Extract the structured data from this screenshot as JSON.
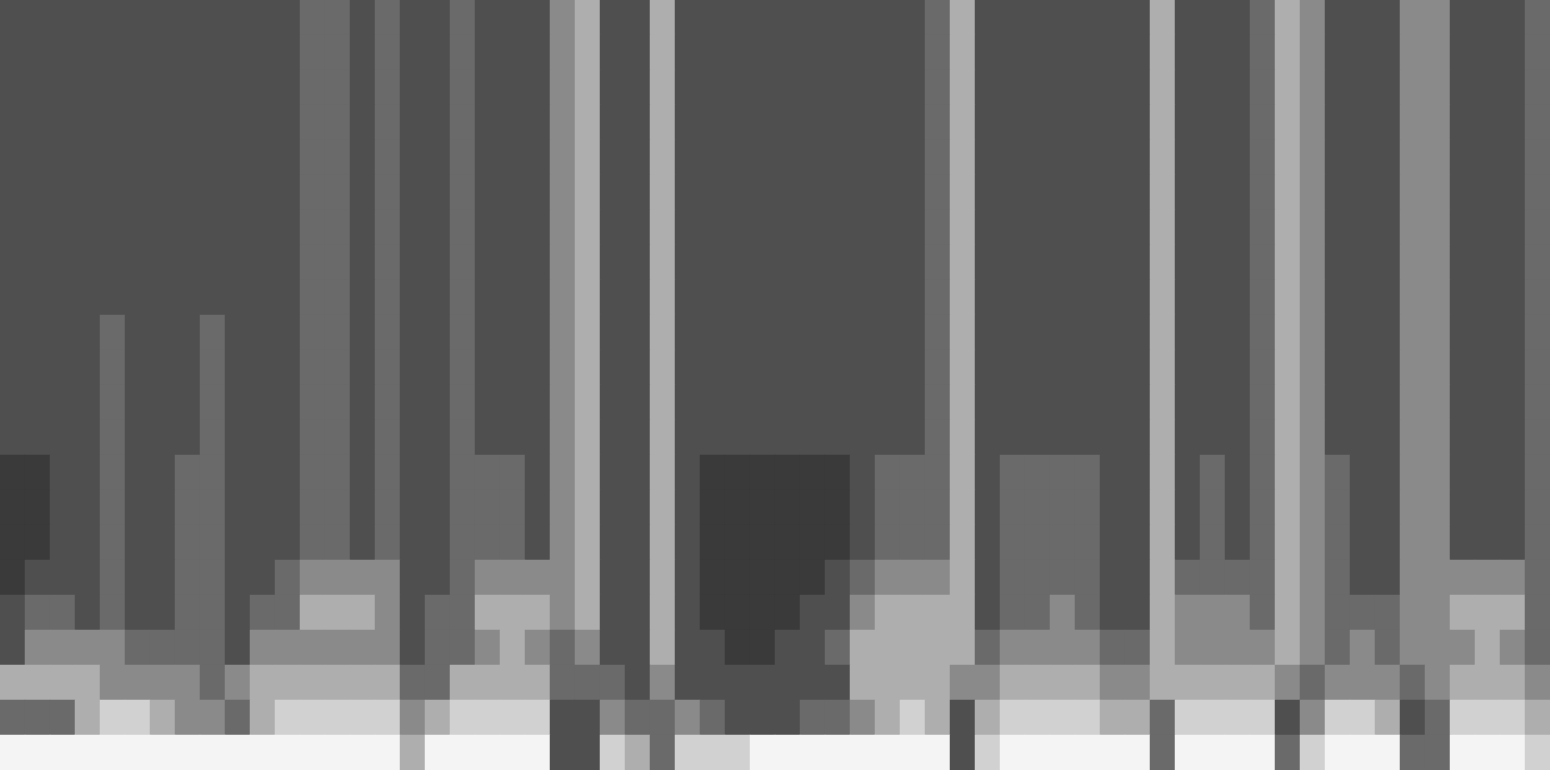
{
  "chart_data": {
    "type": "heatmap",
    "tick_labels": false,
    "grid": false,
    "cells": [
      [
        3,
        3,
        3,
        3,
        3,
        3,
        3,
        3,
        3,
        3,
        3,
        3,
        4,
        4,
        3,
        4,
        3,
        3,
        4,
        3,
        3,
        3,
        5,
        6,
        3,
        3,
        6,
        3,
        3,
        3,
        3,
        3,
        3,
        3,
        3,
        3,
        3,
        4,
        6,
        3,
        3,
        3,
        3,
        3,
        3,
        3,
        6,
        3,
        3,
        3,
        4,
        6,
        5,
        3,
        3,
        3,
        5,
        5,
        3,
        3,
        3,
        4
      ],
      [
        3,
        3,
        3,
        3,
        3,
        3,
        3,
        3,
        3,
        3,
        3,
        3,
        4,
        4,
        3,
        4,
        3,
        3,
        4,
        3,
        3,
        3,
        5,
        6,
        3,
        3,
        6,
        3,
        3,
        3,
        3,
        3,
        3,
        3,
        3,
        3,
        3,
        4,
        6,
        3,
        3,
        3,
        3,
        3,
        3,
        3,
        6,
        3,
        3,
        3,
        4,
        6,
        5,
        3,
        3,
        3,
        5,
        5,
        3,
        3,
        3,
        4
      ],
      [
        3,
        3,
        3,
        3,
        3,
        3,
        3,
        3,
        3,
        3,
        3,
        3,
        4,
        4,
        3,
        4,
        3,
        3,
        4,
        3,
        3,
        3,
        5,
        6,
        3,
        3,
        6,
        3,
        3,
        3,
        3,
        3,
        3,
        3,
        3,
        3,
        3,
        4,
        6,
        3,
        3,
        3,
        3,
        3,
        3,
        3,
        6,
        3,
        3,
        3,
        4,
        6,
        5,
        3,
        3,
        3,
        5,
        5,
        3,
        3,
        3,
        4
      ],
      [
        3,
        3,
        3,
        3,
        3,
        3,
        3,
        3,
        3,
        3,
        3,
        3,
        4,
        4,
        3,
        4,
        3,
        3,
        4,
        3,
        3,
        3,
        5,
        6,
        3,
        3,
        6,
        3,
        3,
        3,
        3,
        3,
        3,
        3,
        3,
        3,
        3,
        4,
        6,
        3,
        3,
        3,
        3,
        3,
        3,
        3,
        6,
        3,
        3,
        3,
        4,
        6,
        5,
        3,
        3,
        3,
        5,
        5,
        3,
        3,
        3,
        4
      ],
      [
        3,
        3,
        3,
        3,
        3,
        3,
        3,
        3,
        3,
        3,
        3,
        3,
        4,
        4,
        3,
        4,
        3,
        3,
        4,
        3,
        3,
        3,
        5,
        6,
        3,
        3,
        6,
        3,
        3,
        3,
        3,
        3,
        3,
        3,
        3,
        3,
        3,
        4,
        6,
        3,
        3,
        3,
        3,
        3,
        3,
        3,
        6,
        3,
        3,
        3,
        4,
        6,
        5,
        3,
        3,
        3,
        5,
        5,
        3,
        3,
        3,
        4
      ],
      [
        3,
        3,
        3,
        3,
        3,
        3,
        3,
        3,
        3,
        3,
        3,
        3,
        4,
        4,
        3,
        4,
        3,
        3,
        4,
        3,
        3,
        3,
        5,
        6,
        3,
        3,
        6,
        3,
        3,
        3,
        3,
        3,
        3,
        3,
        3,
        3,
        3,
        4,
        6,
        3,
        3,
        3,
        3,
        3,
        3,
        3,
        6,
        3,
        3,
        3,
        4,
        6,
        5,
        3,
        3,
        3,
        5,
        5,
        3,
        3,
        3,
        4
      ],
      [
        3,
        3,
        3,
        3,
        3,
        3,
        3,
        3,
        3,
        3,
        3,
        3,
        4,
        4,
        3,
        4,
        3,
        3,
        4,
        3,
        3,
        3,
        5,
        6,
        3,
        3,
        6,
        3,
        3,
        3,
        3,
        3,
        3,
        3,
        3,
        3,
        3,
        4,
        6,
        3,
        3,
        3,
        3,
        3,
        3,
        3,
        6,
        3,
        3,
        3,
        4,
        6,
        5,
        3,
        3,
        3,
        5,
        5,
        3,
        3,
        3,
        4
      ],
      [
        3,
        3,
        3,
        3,
        3,
        3,
        3,
        3,
        3,
        3,
        3,
        3,
        4,
        4,
        3,
        4,
        3,
        3,
        4,
        3,
        3,
        3,
        5,
        6,
        3,
        3,
        6,
        3,
        3,
        3,
        3,
        3,
        3,
        3,
        3,
        3,
        3,
        4,
        6,
        3,
        3,
        3,
        3,
        3,
        3,
        3,
        6,
        3,
        3,
        3,
        4,
        6,
        5,
        3,
        3,
        3,
        5,
        5,
        3,
        3,
        3,
        4
      ],
      [
        3,
        3,
        3,
        3,
        3,
        3,
        3,
        3,
        3,
        3,
        3,
        3,
        4,
        4,
        3,
        4,
        3,
        3,
        4,
        3,
        3,
        3,
        5,
        6,
        3,
        3,
        6,
        3,
        3,
        3,
        3,
        3,
        3,
        3,
        3,
        3,
        3,
        4,
        6,
        3,
        3,
        3,
        3,
        3,
        3,
        3,
        6,
        3,
        3,
        3,
        4,
        6,
        5,
        3,
        3,
        3,
        5,
        5,
        3,
        3,
        3,
        4
      ],
      [
        3,
        3,
        3,
        3,
        4,
        3,
        3,
        3,
        4,
        3,
        3,
        3,
        4,
        4,
        3,
        4,
        3,
        3,
        4,
        3,
        3,
        3,
        5,
        6,
        3,
        3,
        6,
        3,
        3,
        3,
        3,
        3,
        3,
        3,
        3,
        3,
        3,
        4,
        6,
        3,
        3,
        3,
        3,
        3,
        3,
        3,
        6,
        3,
        3,
        3,
        4,
        6,
        5,
        3,
        3,
        3,
        5,
        5,
        3,
        3,
        3,
        4
      ],
      [
        3,
        3,
        3,
        3,
        4,
        3,
        3,
        3,
        4,
        3,
        3,
        3,
        4,
        4,
        3,
        4,
        3,
        3,
        4,
        3,
        3,
        3,
        5,
        6,
        3,
        3,
        6,
        3,
        3,
        3,
        3,
        3,
        3,
        3,
        3,
        3,
        3,
        4,
        6,
        3,
        3,
        3,
        3,
        3,
        3,
        3,
        6,
        3,
        3,
        3,
        4,
        6,
        5,
        3,
        3,
        3,
        5,
        5,
        3,
        3,
        3,
        4
      ],
      [
        3,
        3,
        3,
        3,
        4,
        3,
        3,
        3,
        4,
        3,
        3,
        3,
        4,
        4,
        3,
        4,
        3,
        3,
        4,
        3,
        3,
        3,
        5,
        6,
        3,
        3,
        6,
        3,
        3,
        3,
        3,
        3,
        3,
        3,
        3,
        3,
        3,
        4,
        6,
        3,
        3,
        3,
        3,
        3,
        3,
        3,
        6,
        3,
        3,
        3,
        4,
        6,
        5,
        3,
        3,
        3,
        5,
        5,
        3,
        3,
        3,
        4
      ],
      [
        3,
        3,
        3,
        3,
        4,
        3,
        3,
        3,
        4,
        3,
        3,
        3,
        4,
        4,
        3,
        4,
        3,
        3,
        4,
        3,
        3,
        3,
        5,
        6,
        3,
        3,
        6,
        3,
        3,
        3,
        3,
        3,
        3,
        3,
        3,
        3,
        3,
        4,
        6,
        3,
        3,
        3,
        3,
        3,
        3,
        3,
        6,
        3,
        3,
        3,
        4,
        6,
        5,
        3,
        3,
        3,
        5,
        5,
        3,
        3,
        3,
        4
      ],
      [
        2,
        2,
        3,
        3,
        4,
        3,
        3,
        4,
        4,
        3,
        3,
        3,
        4,
        4,
        3,
        4,
        3,
        3,
        4,
        4,
        4,
        3,
        5,
        6,
        3,
        3,
        6,
        3,
        2,
        2,
        2,
        2,
        2,
        2,
        3,
        4,
        4,
        4,
        6,
        3,
        4,
        4,
        4,
        4,
        3,
        3,
        6,
        3,
        4,
        3,
        4,
        6,
        5,
        4,
        3,
        3,
        5,
        5,
        3,
        3,
        3,
        4
      ],
      [
        2,
        2,
        3,
        3,
        4,
        3,
        3,
        4,
        4,
        3,
        3,
        3,
        4,
        4,
        3,
        4,
        3,
        3,
        4,
        4,
        4,
        3,
        5,
        6,
        3,
        3,
        6,
        3,
        2,
        2,
        2,
        2,
        2,
        2,
        3,
        4,
        4,
        4,
        6,
        3,
        4,
        4,
        4,
        4,
        3,
        3,
        6,
        3,
        4,
        3,
        4,
        6,
        5,
        4,
        3,
        3,
        5,
        5,
        3,
        3,
        3,
        4
      ],
      [
        2,
        2,
        3,
        3,
        4,
        3,
        3,
        4,
        4,
        3,
        3,
        3,
        4,
        4,
        3,
        4,
        3,
        3,
        4,
        4,
        4,
        3,
        5,
        6,
        3,
        3,
        6,
        3,
        2,
        2,
        2,
        2,
        2,
        2,
        3,
        4,
        4,
        4,
        6,
        3,
        4,
        4,
        4,
        4,
        3,
        3,
        6,
        3,
        4,
        3,
        4,
        6,
        5,
        4,
        3,
        3,
        5,
        5,
        3,
        3,
        3,
        4
      ],
      [
        2,
        3,
        3,
        3,
        4,
        3,
        3,
        4,
        4,
        3,
        3,
        4,
        5,
        5,
        5,
        5,
        3,
        3,
        4,
        5,
        5,
        5,
        5,
        6,
        3,
        3,
        6,
        3,
        2,
        2,
        2,
        2,
        2,
        3,
        4,
        5,
        5,
        5,
        6,
        3,
        4,
        4,
        4,
        4,
        3,
        3,
        6,
        4,
        4,
        4,
        4,
        6,
        5,
        4,
        3,
        3,
        5,
        5,
        5,
        5,
        5,
        4
      ],
      [
        3,
        4,
        4,
        3,
        4,
        3,
        3,
        4,
        4,
        3,
        4,
        4,
        6,
        6,
        6,
        5,
        3,
        4,
        4,
        6,
        6,
        6,
        5,
        6,
        3,
        3,
        6,
        3,
        2,
        2,
        2,
        2,
        3,
        3,
        5,
        6,
        6,
        6,
        6,
        3,
        4,
        4,
        5,
        4,
        3,
        3,
        6,
        5,
        5,
        5,
        4,
        6,
        5,
        4,
        4,
        4,
        5,
        5,
        6,
        6,
        6,
        4
      ],
      [
        3,
        5,
        5,
        5,
        5,
        4,
        4,
        4,
        4,
        3,
        5,
        5,
        5,
        5,
        5,
        5,
        3,
        4,
        4,
        5,
        6,
        5,
        4,
        5,
        3,
        3,
        6,
        3,
        3,
        2,
        2,
        3,
        3,
        4,
        6,
        6,
        6,
        6,
        6,
        4,
        5,
        5,
        5,
        5,
        4,
        4,
        6,
        5,
        5,
        5,
        5,
        6,
        5,
        4,
        5,
        4,
        5,
        5,
        5,
        6,
        5,
        4
      ],
      [
        6,
        6,
        6,
        6,
        5,
        5,
        5,
        5,
        4,
        5,
        6,
        6,
        6,
        6,
        6,
        6,
        4,
        4,
        6,
        6,
        6,
        6,
        4,
        4,
        4,
        3,
        5,
        3,
        3,
        3,
        3,
        3,
        3,
        3,
        6,
        6,
        6,
        6,
        5,
        5,
        6,
        6,
        6,
        6,
        5,
        5,
        6,
        6,
        6,
        6,
        6,
        5,
        4,
        5,
        5,
        5,
        4,
        5,
        6,
        6,
        6,
        5
      ],
      [
        4,
        4,
        4,
        6,
        7,
        7,
        6,
        5,
        5,
        4,
        6,
        7,
        7,
        7,
        7,
        7,
        5,
        6,
        7,
        7,
        7,
        7,
        3,
        3,
        5,
        4,
        4,
        5,
        4,
        3,
        3,
        3,
        4,
        4,
        5,
        6,
        7,
        6,
        3,
        6,
        7,
        7,
        7,
        7,
        6,
        6,
        4,
        7,
        7,
        7,
        7,
        3,
        5,
        7,
        7,
        6,
        3,
        4,
        7,
        7,
        7,
        6
      ],
      [
        8,
        8,
        8,
        8,
        8,
        8,
        8,
        8,
        8,
        8,
        8,
        8,
        8,
        8,
        8,
        8,
        6,
        8,
        8,
        8,
        8,
        8,
        3,
        3,
        7,
        6,
        4,
        7,
        7,
        7,
        8,
        8,
        8,
        8,
        8,
        8,
        8,
        8,
        3,
        7,
        8,
        8,
        8,
        8,
        8,
        8,
        4,
        8,
        8,
        8,
        8,
        4,
        7,
        8,
        8,
        8,
        4,
        4,
        8,
        8,
        8,
        7
      ]
    ]
  }
}
